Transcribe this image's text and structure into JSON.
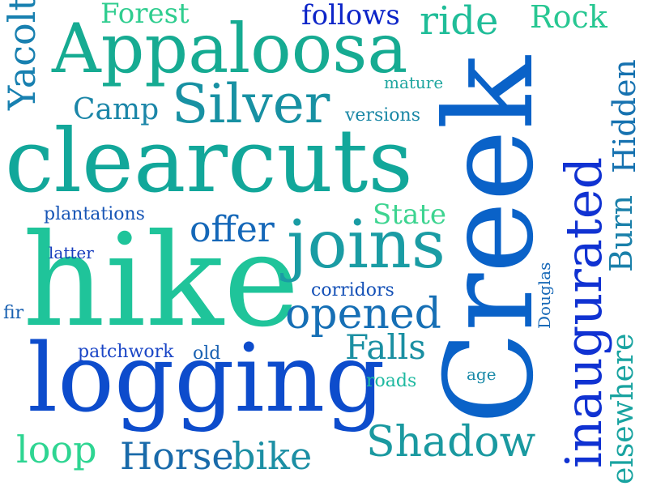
{
  "words": [
    {
      "key": "creek",
      "text": "Creek",
      "color": "#0a62c8"
    },
    {
      "key": "hike",
      "text": "hike",
      "color": "#1fc49a"
    },
    {
      "key": "clearcuts",
      "text": "clearcuts",
      "color": "#12a79a"
    },
    {
      "key": "logging",
      "text": "logging",
      "color": "#0d4ccc"
    },
    {
      "key": "appaloosa",
      "text": "Appaloosa",
      "color": "#16ab92"
    },
    {
      "key": "inaugurated",
      "text": "inaugurated",
      "color": "#1032d2"
    },
    {
      "key": "silver",
      "text": "Silver",
      "color": "#1891a3"
    },
    {
      "key": "joins",
      "text": "joins",
      "color": "#1a9ca4"
    },
    {
      "key": "opened",
      "text": "opened",
      "color": "#166fb5"
    },
    {
      "key": "shadow",
      "text": "Shadow",
      "color": "#1a99a0"
    },
    {
      "key": "horse",
      "text": "Horse",
      "color": "#196aaa"
    },
    {
      "key": "bike",
      "text": "bike",
      "color": "#1c8fa4"
    },
    {
      "key": "loop",
      "text": "loop",
      "color": "#2ed592"
    },
    {
      "key": "falls",
      "text": "Falls",
      "color": "#1a8fa2"
    },
    {
      "key": "offer",
      "text": "offer",
      "color": "#1467b8"
    },
    {
      "key": "ride",
      "text": "ride",
      "color": "#1fbd98"
    },
    {
      "key": "rock",
      "text": "Rock",
      "color": "#1880b0"
    },
    {
      "key": "yacolt",
      "text": "Yacolt",
      "color": "#28c792"
    },
    {
      "key": "forest",
      "text": "Forest",
      "color": "#2fcd8f"
    },
    {
      "key": "follows",
      "text": "follows",
      "color": "#0c24c8"
    },
    {
      "key": "camp",
      "text": "Camp",
      "color": "#1b86a8"
    },
    {
      "key": "hidden",
      "text": "Hidden",
      "color": "#1672b0"
    },
    {
      "key": "burn",
      "text": "Burn",
      "color": "#1a80aa"
    },
    {
      "key": "elsewhere",
      "text": "elsewhere",
      "color": "#18a3a0"
    },
    {
      "key": "state",
      "text": "State",
      "color": "#3dd490"
    },
    {
      "key": "mature",
      "text": "mature",
      "color": "#1fa6a0"
    },
    {
      "key": "versions",
      "text": "versions",
      "color": "#1b88a6"
    },
    {
      "key": "plantations",
      "text": "plantations",
      "color": "#1856b6"
    },
    {
      "key": "latter",
      "text": "latter",
      "color": "#163cbd"
    },
    {
      "key": "corridors",
      "text": "corridors",
      "color": "#1551b7"
    },
    {
      "key": "fir",
      "text": "fir",
      "color": "#175fb0"
    },
    {
      "key": "patchwork",
      "text": "patchwork",
      "color": "#1a45c6"
    },
    {
      "key": "old",
      "text": "old",
      "color": "#1a62b2"
    },
    {
      "key": "roads",
      "text": "roads",
      "color": "#1eb9a0"
    },
    {
      "key": "age",
      "text": "age",
      "color": "#1a8aa8"
    },
    {
      "key": "douglas",
      "text": "Douglas",
      "color": "#1a6ab8"
    }
  ]
}
